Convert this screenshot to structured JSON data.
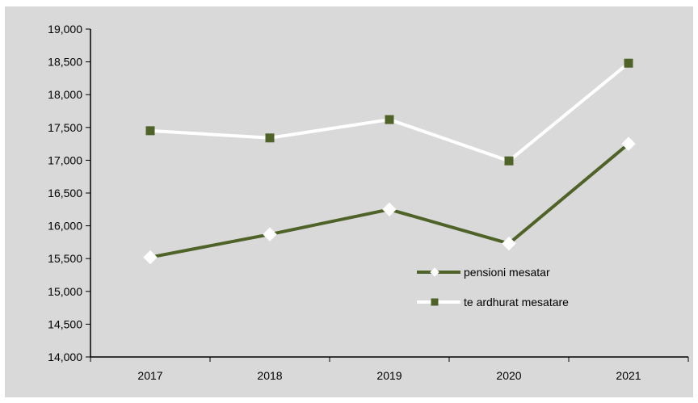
{
  "chart_data": {
    "type": "line",
    "categories": [
      "2017",
      "2018",
      "2019",
      "2020",
      "2021"
    ],
    "ylim": [
      14000,
      19000
    ],
    "yticks": [
      "14,000",
      "14,500",
      "15,000",
      "15,500",
      "16,000",
      "16,500",
      "17,000",
      "17,500",
      "18,000",
      "18,500",
      "19,000"
    ],
    "grid": false,
    "legend_position": "bottom-right",
    "series": [
      {
        "name": "pensioni mesatar",
        "values": [
          15520,
          15870,
          16250,
          15730,
          17250
        ],
        "line_color": "#4f6228",
        "marker": "diamond",
        "marker_color": "#ffffff"
      },
      {
        "name": "te ardhurat mesatare",
        "values": [
          17450,
          17340,
          17620,
          16990,
          18480
        ],
        "line_color": "#ffffff",
        "marker": "square",
        "marker_color": "#4f6228"
      }
    ]
  },
  "colors": {
    "plot_background": "#d9d9d9",
    "axis": "#000000"
  }
}
